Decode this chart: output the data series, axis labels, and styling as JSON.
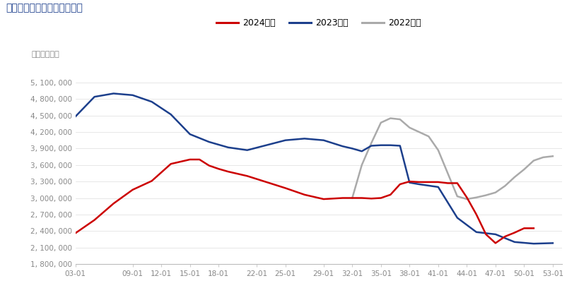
{
  "title": "原木：港口库存：中国（周）",
  "unit_label": "单位：立方米",
  "legend": [
    "2024年度",
    "2023年度",
    "2022年度"
  ],
  "legend_colors": [
    "#CC0000",
    "#1C3F8C",
    "#AAAAAA"
  ],
  "x_ticks": [
    "03-01",
    "09-01",
    "12-01",
    "15-01",
    "18-01",
    "22-01",
    "25-01",
    "29-01",
    "32-01",
    "35-01",
    "38-01",
    "41-01",
    "44-01",
    "47-01",
    "50-01",
    "53-01"
  ],
  "x_tick_positions": [
    3,
    9,
    12,
    15,
    18,
    22,
    25,
    29,
    32,
    35,
    38,
    41,
    44,
    47,
    50,
    53
  ],
  "ylim": [
    1800000,
    5400000
  ],
  "y_ticks": [
    1800000,
    2100000,
    2400000,
    2700000,
    3000000,
    3300000,
    3600000,
    3900000,
    4200000,
    4500000,
    4800000,
    5100000
  ],
  "background_color": "#ffffff",
  "series_2024": {
    "x": [
      3,
      5,
      7,
      9,
      11,
      13,
      15,
      16,
      17,
      18,
      19,
      21,
      23,
      25,
      27,
      29,
      30,
      31,
      32,
      33,
      34,
      35,
      36,
      37,
      38,
      39,
      40,
      41,
      42,
      43,
      44,
      45,
      46,
      47,
      48,
      49,
      50,
      51
    ],
    "y": [
      2360000,
      2600000,
      2900000,
      3150000,
      3310000,
      3620000,
      3700000,
      3700000,
      3590000,
      3530000,
      3480000,
      3400000,
      3290000,
      3180000,
      3060000,
      2980000,
      2990000,
      3000000,
      3000000,
      3000000,
      2990000,
      3000000,
      3060000,
      3250000,
      3300000,
      3290000,
      3290000,
      3290000,
      3270000,
      3270000,
      3010000,
      2700000,
      2340000,
      2180000,
      2300000,
      2370000,
      2450000,
      2450000
    ]
  },
  "series_2023": {
    "x": [
      3,
      5,
      7,
      9,
      11,
      13,
      15,
      17,
      19,
      21,
      23,
      25,
      27,
      29,
      31,
      32,
      33,
      34,
      35,
      36,
      37,
      38,
      39,
      41,
      43,
      45,
      47,
      49,
      51,
      53
    ],
    "y": [
      4480000,
      4840000,
      4900000,
      4870000,
      4750000,
      4520000,
      4160000,
      4020000,
      3920000,
      3870000,
      3960000,
      4050000,
      4080000,
      4050000,
      3940000,
      3900000,
      3850000,
      3950000,
      3960000,
      3960000,
      3950000,
      3280000,
      3250000,
      3200000,
      2640000,
      2380000,
      2340000,
      2200000,
      2170000,
      2180000
    ]
  },
  "series_2022": {
    "x": [
      32,
      33,
      34,
      35,
      36,
      37,
      38,
      39,
      40,
      41,
      42,
      43,
      44,
      45,
      46,
      47,
      48,
      49,
      50,
      51,
      52,
      53
    ],
    "y": [
      3000000,
      3600000,
      4000000,
      4370000,
      4450000,
      4430000,
      4280000,
      4200000,
      4120000,
      3870000,
      3450000,
      3030000,
      2980000,
      3010000,
      3050000,
      3100000,
      3220000,
      3380000,
      3520000,
      3680000,
      3740000,
      3760000
    ]
  }
}
